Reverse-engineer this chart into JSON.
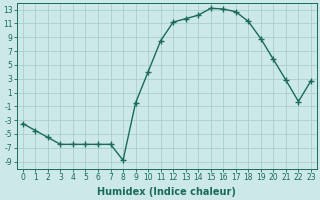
{
  "x": [
    0,
    1,
    2,
    3,
    4,
    5,
    6,
    7,
    8,
    9,
    10,
    11,
    12,
    13,
    14,
    15,
    16,
    17,
    18,
    19,
    20,
    21,
    22,
    23
  ],
  "y": [
    -3.5,
    -4.5,
    -5.5,
    -6.5,
    -6.5,
    -6.5,
    -6.5,
    -6.5,
    -8.8,
    -0.5,
    4.0,
    8.5,
    11.2,
    11.7,
    12.2,
    13.2,
    13.1,
    12.7,
    11.3,
    8.8,
    5.8,
    2.8,
    -0.3,
    2.7
  ],
  "line_color": "#1a6b5a",
  "marker": "+",
  "markersize": 4,
  "markeredgewidth": 1.0,
  "bg_color": "#cce8e8",
  "grid_color": "#aacece",
  "xlabel": "Humidex (Indice chaleur)",
  "xlim": [
    -0.5,
    23.5
  ],
  "ylim": [
    -10,
    14
  ],
  "yticks": [
    -9,
    -7,
    -5,
    -3,
    -1,
    1,
    3,
    5,
    7,
    9,
    11,
    13
  ],
  "xticks": [
    0,
    1,
    2,
    3,
    4,
    5,
    6,
    7,
    8,
    9,
    10,
    11,
    12,
    13,
    14,
    15,
    16,
    17,
    18,
    19,
    20,
    21,
    22,
    23
  ],
  "tick_fontsize": 5.5,
  "xlabel_fontsize": 7
}
